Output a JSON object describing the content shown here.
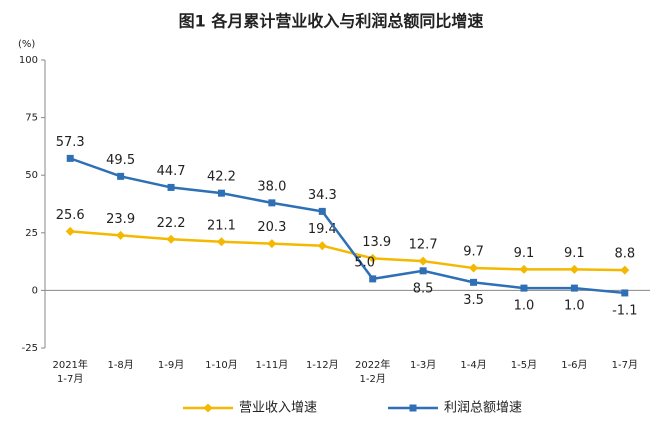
{
  "chart_data": {
    "type": "line",
    "title": "图1  各月累计营业收入与利润总额同比增速",
    "y_axis_label": "(%)",
    "categories": [
      [
        "2021年",
        "1-7月"
      ],
      [
        "1-8月"
      ],
      [
        "1-9月"
      ],
      [
        "1-10月"
      ],
      [
        "1-11月"
      ],
      [
        "1-12月"
      ],
      [
        "2022年",
        "1-2月"
      ],
      [
        "1-3月"
      ],
      [
        "1-4月"
      ],
      [
        "1-5月"
      ],
      [
        "1-6月"
      ],
      [
        "1-7月"
      ]
    ],
    "ylim": [
      -25,
      100
    ],
    "yticks": [
      -25,
      0,
      25,
      50,
      75,
      100
    ],
    "grid": false,
    "legend": "bottom",
    "series": [
      {
        "name": "营业收入增速",
        "color": "#f5b800",
        "marker": "diamond",
        "values": [
          25.6,
          23.9,
          22.2,
          21.1,
          20.3,
          19.4,
          13.9,
          12.7,
          9.7,
          9.1,
          9.1,
          8.8
        ],
        "value_labels": [
          "25.6",
          "23.9",
          "22.2",
          "21.1",
          "20.3",
          "19.4",
          "13.9",
          "12.7",
          "9.7",
          "9.1",
          "9.1",
          "8.8"
        ]
      },
      {
        "name": "利润总额增速",
        "color": "#2e6fb5",
        "marker": "square",
        "values": [
          57.3,
          49.5,
          44.7,
          42.2,
          38.0,
          34.3,
          5.0,
          8.5,
          3.5,
          1.0,
          1.0,
          -1.1
        ],
        "value_labels": [
          "57.3",
          "49.5",
          "44.7",
          "42.2",
          "38.0",
          "34.3",
          "5.0",
          "8.5",
          "3.5",
          "1.0",
          "1.0",
          "-1.1"
        ]
      }
    ]
  }
}
